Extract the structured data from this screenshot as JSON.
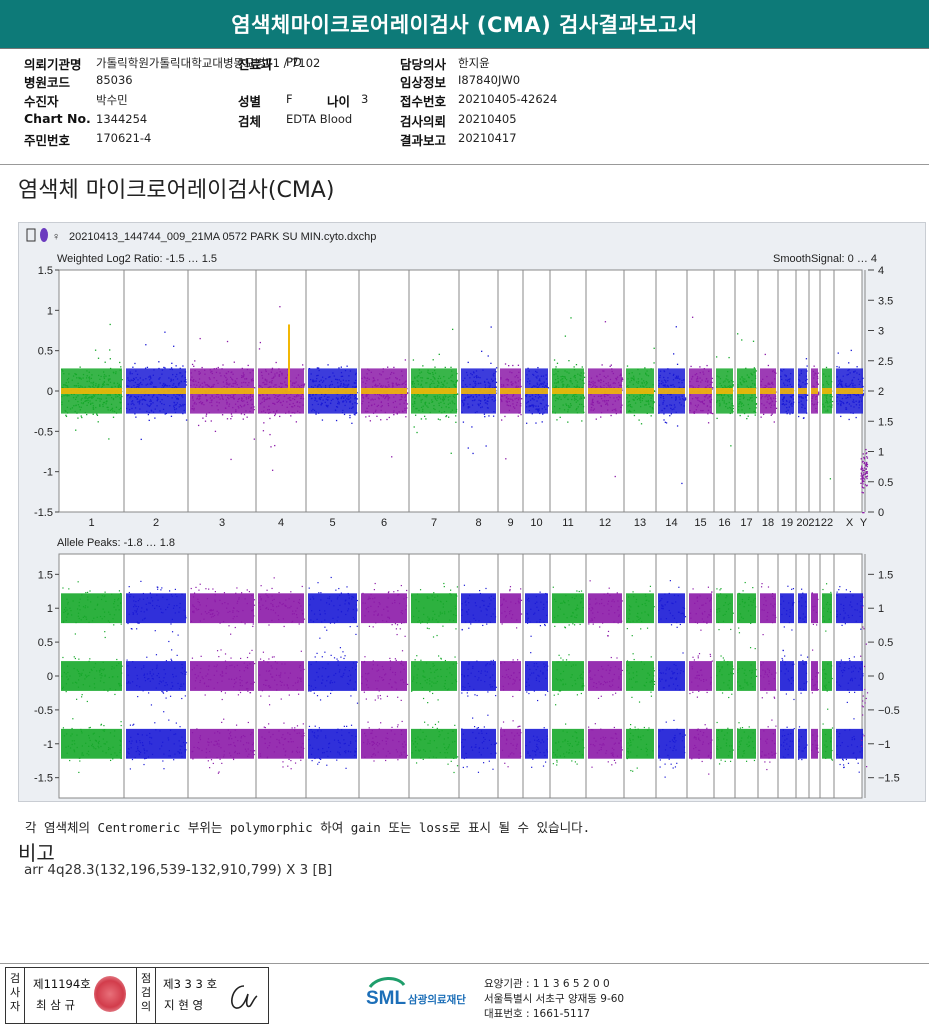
{
  "header": {
    "title": "염색체마이크로어레이검사 (CMA) 검사결과보고서"
  },
  "info": {
    "items": [
      {
        "label": "의뢰기관명",
        "value": "가톨릭학원가톨릭대학교대병동모병71 / 7102"
      },
      {
        "label": "병원코드",
        "value": "85036"
      },
      {
        "label": "수진자",
        "value": "박수민"
      },
      {
        "label": "Chart No.",
        "value": "1344254"
      },
      {
        "label": "주민번호",
        "value": "170621-4"
      },
      {
        "label": "진료과",
        "value": "PD"
      },
      {
        "label": "성별",
        "value": "F"
      },
      {
        "label": "나이",
        "value": "3"
      },
      {
        "label": "검체",
        "value": "EDTA Blood"
      },
      {
        "label": "담당의사",
        "value": "한지윤"
      },
      {
        "label": "임상정보",
        "value": "I87840JW0"
      },
      {
        "label": "접수번호",
        "value": "20210405-42624"
      },
      {
        "label": "검사의뢰",
        "value": "20210405"
      },
      {
        "label": "결과보고",
        "value": "20210417"
      }
    ]
  },
  "section_title": "염색체 마이크로어레이검사(CMA)",
  "chart_data": {
    "type": "scatter",
    "filename": "20210413_144744_009_21MA 0572 PARK SU MIN.cyto.dxchp",
    "chromosomes": [
      "1",
      "2",
      "3",
      "4",
      "5",
      "6",
      "7",
      "8",
      "9",
      "10",
      "11",
      "12",
      "13",
      "14",
      "15",
      "16",
      "17",
      "18",
      "19",
      "20",
      "21",
      "22",
      "X",
      "Y"
    ],
    "chromosome_colors": [
      "green",
      "blue",
      "purple",
      "purple",
      "blue",
      "purple",
      "green",
      "blue",
      "purple",
      "blue",
      "green",
      "purple",
      "green",
      "blue",
      "purple",
      "green",
      "green",
      "purple",
      "blue",
      "blue",
      "purple",
      "green",
      "blue",
      "purple"
    ],
    "colors": {
      "green": "#16a82a",
      "blue": "#1a1ad6",
      "purple": "#8c1aa8",
      "smooth": "#f2b705"
    },
    "top_panel": {
      "title": "Weighted Log2 Ratio: -1.5 … 1.5",
      "right_title": "SmoothSignal: 0 … 4",
      "ylim": [
        -1.5,
        1.5
      ],
      "yticks": [
        "1.5",
        "1",
        "0.5",
        "0",
        "-0.5",
        "-1",
        "-1.5"
      ],
      "right_ylim": [
        0,
        4
      ],
      "right_yticks": [
        "4",
        "3.5",
        "3",
        "2.5",
        "2",
        "1.5",
        "1",
        "0.5",
        "0"
      ],
      "smooth_signal_baseline": 2,
      "y_chromosome_smooth_signal": 0
    },
    "bottom_panel": {
      "title": "Allele Peaks: -1.8 … 1.8",
      "ylim": [
        -1.8,
        1.8
      ],
      "yticks": [
        "1.5",
        "1",
        "0.5",
        "0",
        "-0.5",
        "-1",
        "-1.5"
      ],
      "right_yticks": [
        "1.5",
        "1",
        "0.5",
        "0",
        "−0.5",
        "−1",
        "−1.5"
      ],
      "allele_bands": [
        1,
        0,
        -1
      ]
    }
  },
  "note": "각 염색체의 Centromeric 부위는 polymorphic 하여 gain 또는 loss로 표시 될 수 있습니다.",
  "remark": {
    "title": "비고",
    "text": "arr 4q28.3(132,196,539-132,910,799) X 3 [B]"
  },
  "signatures": {
    "label1": "검사자",
    "num1": "제11194호",
    "name1": "최 삼 규",
    "label2": "점검의",
    "num2": "제3 3 3 호",
    "name2": "지 현 영"
  },
  "org": {
    "logo_text": "SML",
    "name": "삼광의료재단",
    "line1": "요양기관 : 1 1 3 6 5 2 0 0",
    "line2": "서울특별시 서초구 양재동 9-60",
    "line3": "대표번호 : 1661-5117"
  }
}
